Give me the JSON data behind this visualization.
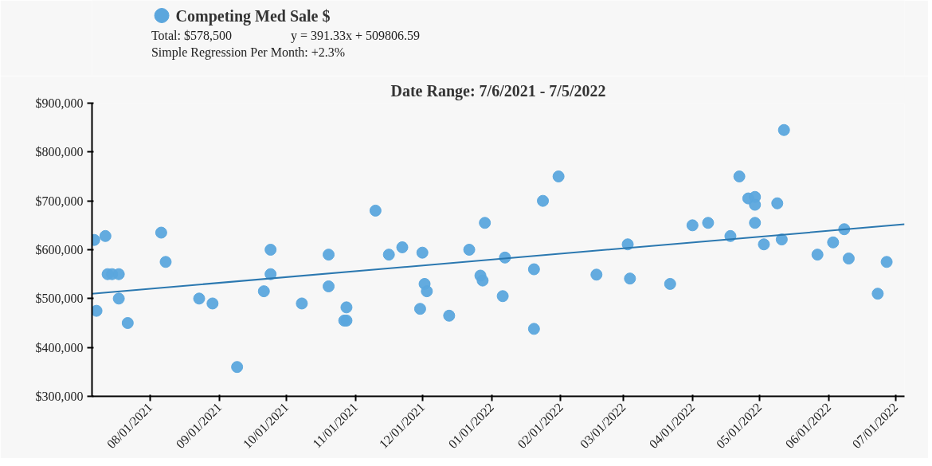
{
  "chart_data": {
    "type": "scatter",
    "title": "Date Range: 7/6/2021 - 7/5/2022",
    "annotations": [
      "Total: $578,500",
      "y = 391.33x + 509806.59",
      "Simple Regression Per Month: +2.3%"
    ],
    "xlim": [
      "2021-07-06",
      "2022-07-05"
    ],
    "xticks": [
      {
        "value": "2021-08-01",
        "label": "08/01/2021"
      },
      {
        "value": "2021-09-01",
        "label": "09/01/2021"
      },
      {
        "value": "2021-10-01",
        "label": "10/01/2021"
      },
      {
        "value": "2021-11-01",
        "label": "11/01/2021"
      },
      {
        "value": "2021-12-01",
        "label": "12/01/2021"
      },
      {
        "value": "2022-01-01",
        "label": "01/01/2022"
      },
      {
        "value": "2022-02-01",
        "label": "02/01/2022"
      },
      {
        "value": "2022-03-01",
        "label": "03/01/2022"
      },
      {
        "value": "2022-04-01",
        "label": "04/01/2022"
      },
      {
        "value": "2022-05-01",
        "label": "05/01/2022"
      },
      {
        "value": "2022-06-01",
        "label": "06/01/2022"
      },
      {
        "value": "2022-07-01",
        "label": "07/01/2022"
      }
    ],
    "ylim": [
      300000,
      900000
    ],
    "yticks": [
      {
        "value": 300000,
        "label": "$300,000"
      },
      {
        "value": 400000,
        "label": "$400,000"
      },
      {
        "value": 500000,
        "label": "$500,000"
      },
      {
        "value": 600000,
        "label": "$600,000"
      },
      {
        "value": 700000,
        "label": "$700,000"
      },
      {
        "value": 800000,
        "label": "$800,000"
      },
      {
        "value": 900000,
        "label": "$900,000"
      }
    ],
    "grid": false,
    "legend": "top left",
    "marker": "circle",
    "series": [
      {
        "name": "Competing Med Sale $",
        "color": "#5ba6dd",
        "x": [
          "2021-07-07",
          "2021-07-08",
          "2021-07-12",
          "2021-07-13",
          "2021-07-15",
          "2021-07-18",
          "2021-07-18",
          "2021-07-22",
          "2021-08-06",
          "2021-08-08",
          "2021-08-23",
          "2021-08-29",
          "2021-09-09",
          "2021-09-21",
          "2021-09-24",
          "2021-09-24",
          "2021-10-08",
          "2021-10-20",
          "2021-10-20",
          "2021-10-27",
          "2021-10-28",
          "2021-10-28",
          "2021-11-10",
          "2021-11-16",
          "2021-11-22",
          "2021-11-30",
          "2021-12-01",
          "2021-12-02",
          "2021-12-03",
          "2021-12-13",
          "2021-12-22",
          "2021-12-27",
          "2021-12-28",
          "2021-12-29",
          "2022-01-06",
          "2022-01-07",
          "2022-01-20",
          "2022-01-20",
          "2022-01-24",
          "2022-01-31",
          "2022-02-17",
          "2022-03-03",
          "2022-03-04",
          "2022-03-22",
          "2022-04-01",
          "2022-04-08",
          "2022-04-18",
          "2022-04-22",
          "2022-04-26",
          "2022-04-29",
          "2022-04-29",
          "2022-04-29",
          "2022-05-03",
          "2022-05-09",
          "2022-05-11",
          "2022-05-12",
          "2022-05-27",
          "2022-06-03",
          "2022-06-08",
          "2022-06-10",
          "2022-06-23",
          "2022-06-27"
        ],
        "values": [
          620000,
          475000,
          628000,
          550000,
          550000,
          550000,
          500000,
          450000,
          635000,
          575000,
          500000,
          490000,
          360000,
          515000,
          600000,
          550000,
          490000,
          590000,
          525000,
          455000,
          455000,
          482000,
          680000,
          590000,
          605000,
          479000,
          594000,
          530000,
          515000,
          465000,
          600000,
          547000,
          537000,
          655000,
          505000,
          584000,
          560000,
          438000,
          700000,
          750000,
          549000,
          611000,
          541000,
          530000,
          650000,
          655000,
          628000,
          750000,
          705000,
          708000,
          692000,
          655000,
          611000,
          695000,
          621000,
          845000,
          590000,
          615000,
          642000,
          582000,
          510000,
          575000
        ]
      },
      {
        "type": "line",
        "marker": "none",
        "color": "#2b78b0",
        "x": [
          "2021-07-06",
          "2022-07-05"
        ],
        "values": [
          510000,
          652000
        ]
      }
    ]
  }
}
